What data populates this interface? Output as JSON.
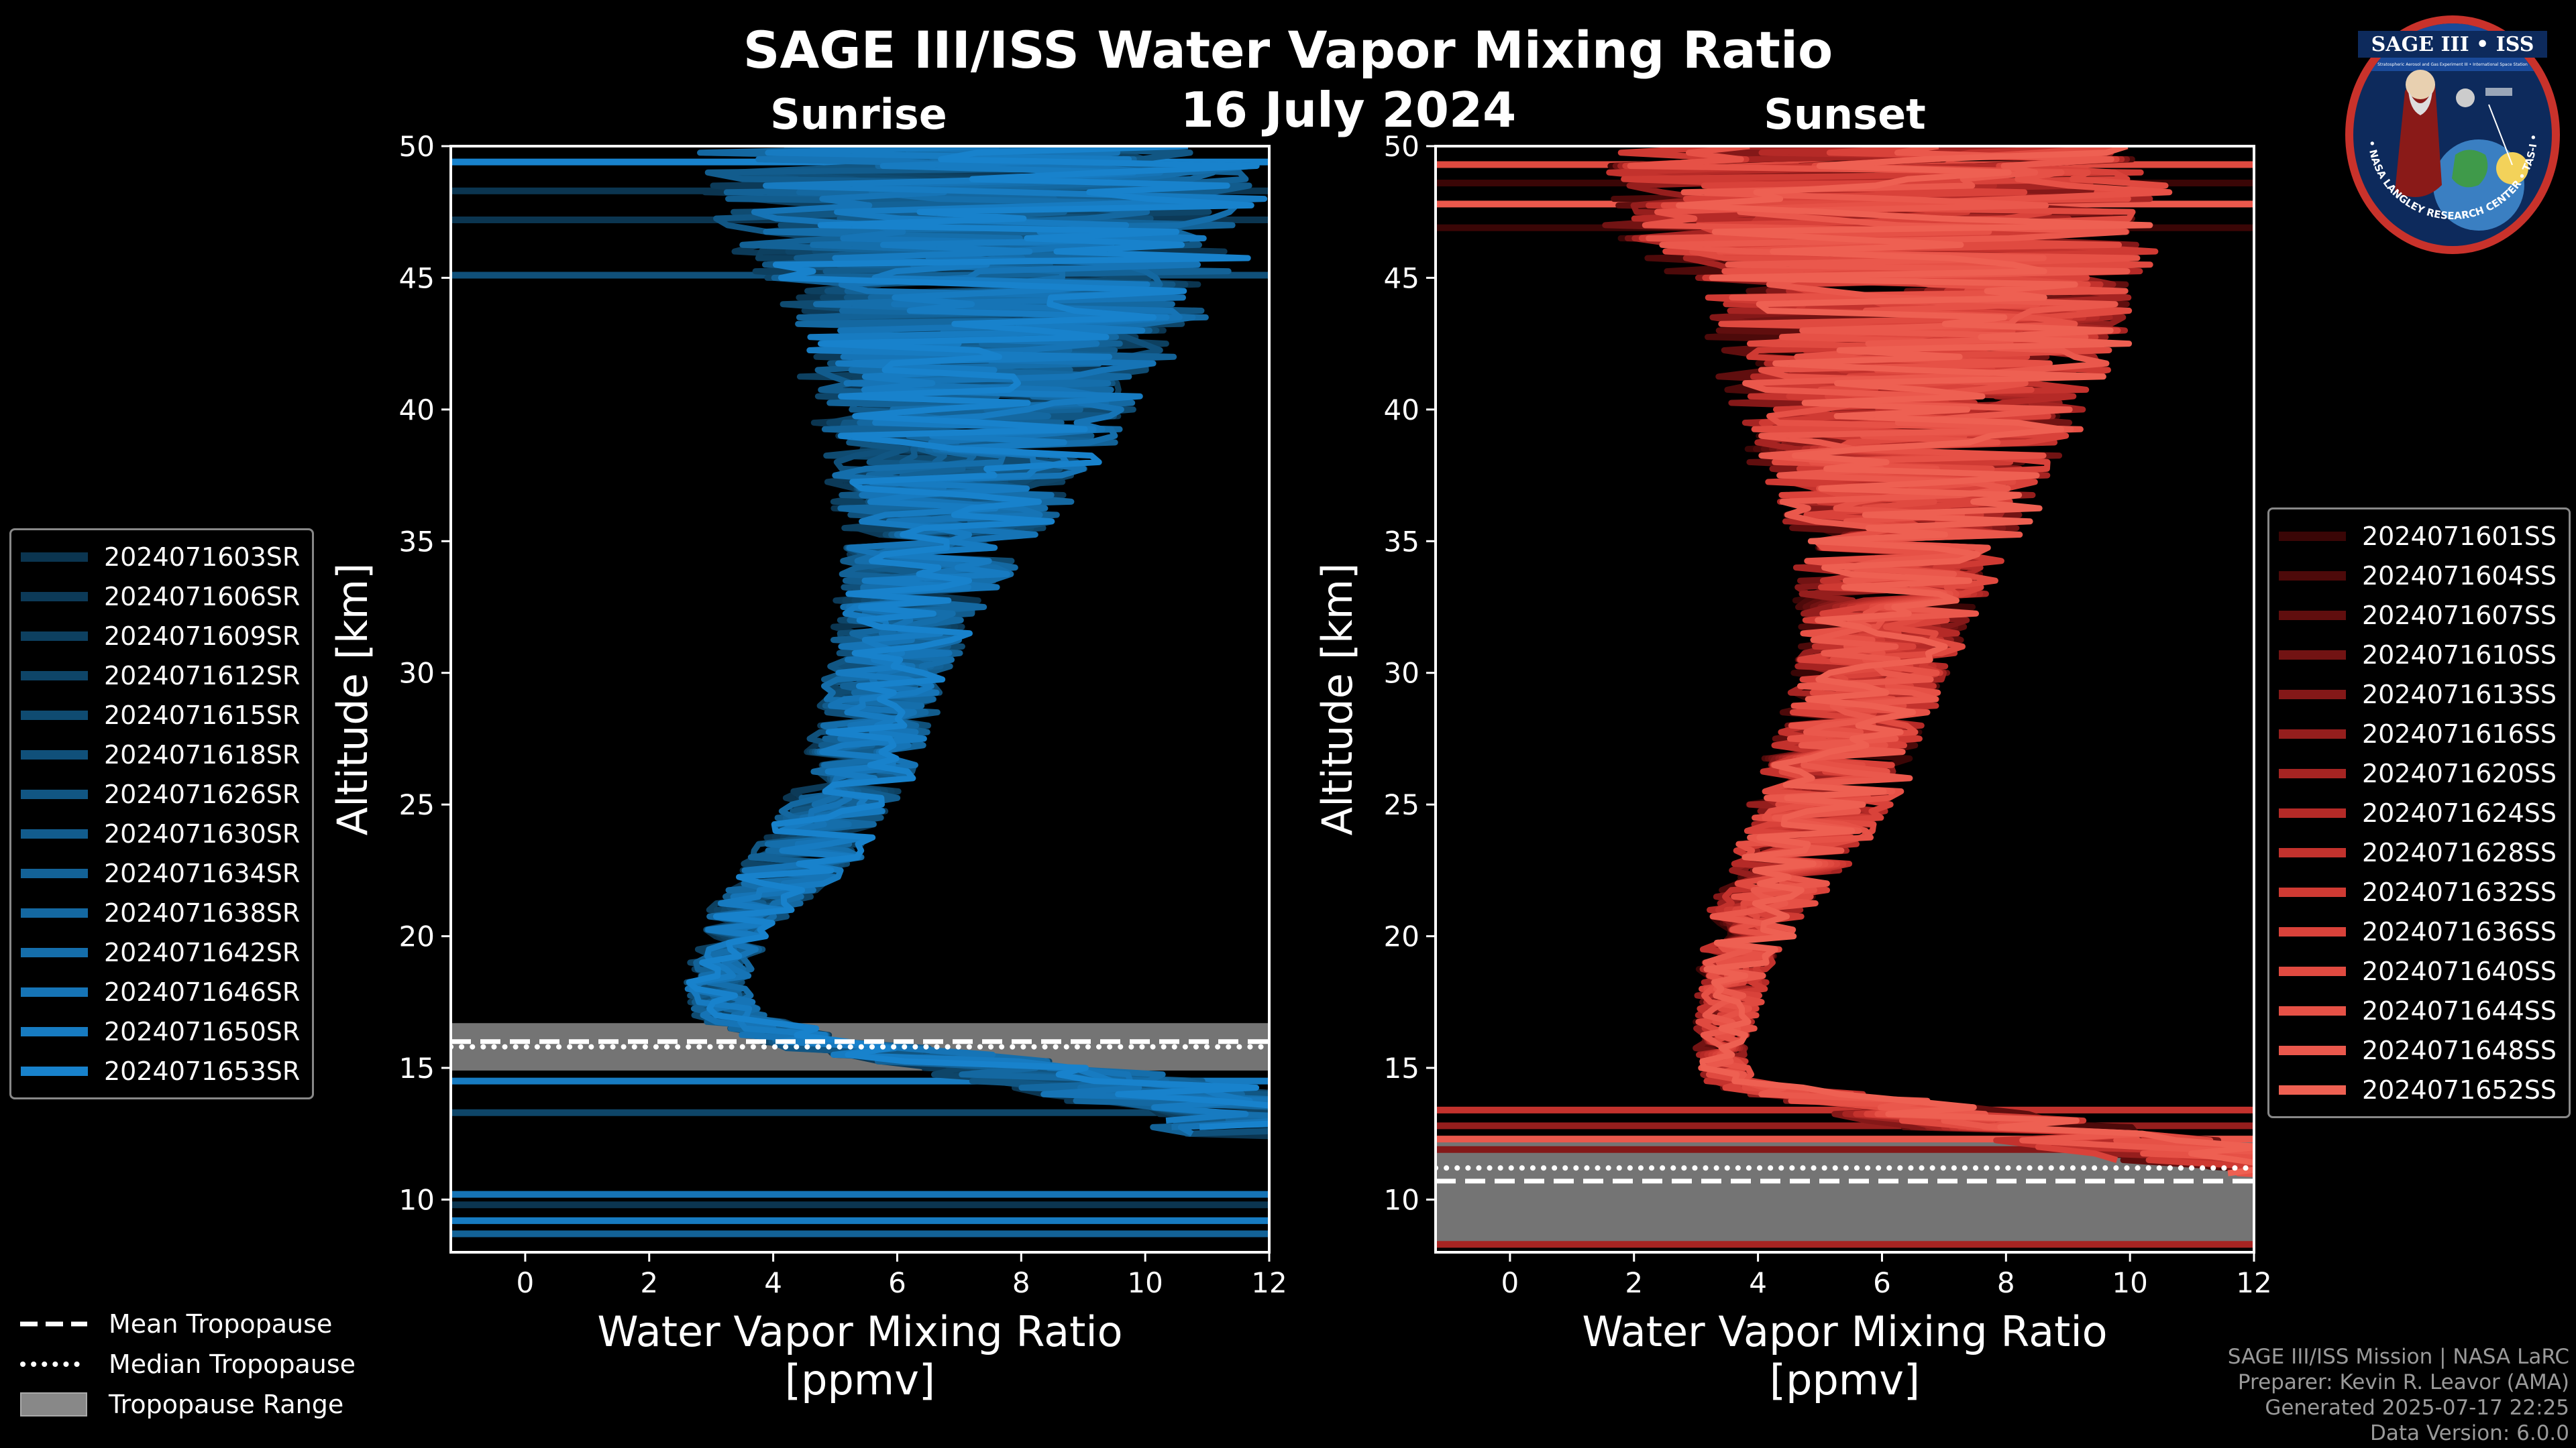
{
  "title": "SAGE III/ISS Water Vapor Mixing Ratio",
  "date": "16 July 2024",
  "colors": {
    "sunrise": "#1a8fd6",
    "sunset": "#e8584a",
    "range": "#888888",
    "background": "#000000"
  },
  "logo": {
    "top_text": "SAGE III • ISS",
    "subtitle": "Stratospheric Aerosol and Gas Experiment III • International Space Station",
    "ring_text": "BALL • NASA LANGLEY RESEARCH CENTER • TAS-I • ESA"
  },
  "tropopause_legend": {
    "mean_label": "Mean Tropopause",
    "median_label": "Median Tropopause",
    "range_label": "Tropopause Range"
  },
  "credits": {
    "line1": "SAGE III/ISS Mission | NASA LaRC",
    "line2": "Preparer: Kevin R. Leavor (AMA)",
    "line3": "Generated 2025-07-17 22:25",
    "line4": "Data Version: 6.0.0"
  },
  "chart_data": [
    {
      "type": "line",
      "title": "Sunrise",
      "xlabel": "Water Vapor Mixing Ratio [ppmv]",
      "ylabel": "Altitude [km]",
      "xlim": [
        -1.2,
        12
      ],
      "ylim": [
        8,
        50
      ],
      "xticks": [
        0,
        2,
        4,
        6,
        8,
        10,
        12
      ],
      "yticks": [
        10,
        15,
        20,
        25,
        30,
        35,
        40,
        45,
        50
      ],
      "legend_position": "left",
      "tropopause": {
        "mean": 16.0,
        "median": 15.8,
        "range": [
          14.9,
          16.7
        ]
      },
      "series_names": [
        "2024071603SR",
        "2024071606SR",
        "2024071609SR",
        "2024071612SR",
        "2024071615SR",
        "2024071618SR",
        "2024071626SR",
        "2024071630SR",
        "2024071634SR",
        "2024071638SR",
        "2024071642SR",
        "2024071646SR",
        "2024071650SR",
        "2024071653SR"
      ],
      "series_colors": [
        "#0b3550",
        "#0c3a58",
        "#0d4060",
        "#0e4568",
        "#0f4b71",
        "#10507a",
        "#115683",
        "#125c8d",
        "#136297",
        "#1468a1",
        "#156eab",
        "#1674b6",
        "#177bc1",
        "#1882cc"
      ],
      "profile": {
        "altitudes": [
          50,
          47,
          44,
          41,
          38,
          35,
          32,
          29,
          26,
          23,
          21,
          19,
          18,
          17,
          16,
          15.5,
          15,
          14.5,
          14,
          13.5,
          13
        ],
        "mean": [
          6.5,
          7.0,
          7.2,
          7.0,
          6.8,
          6.5,
          6.0,
          5.6,
          5.2,
          4.4,
          3.6,
          3.1,
          3.0,
          3.2,
          4.5,
          6.0,
          7.5,
          8.8,
          10.0,
          11.0,
          12.0
        ],
        "spread": [
          4.5,
          4.5,
          3.5,
          2.8,
          2.2,
          1.6,
          1.1,
          1.0,
          0.9,
          0.9,
          0.7,
          0.5,
          0.5,
          0.6,
          1.0,
          1.4,
          1.8,
          2.0,
          2.2,
          2.2,
          2.2
        ]
      },
      "flat_lines_km": [
        13.3,
        14.5,
        8.7,
        9.2,
        9.8,
        10.2,
        45.1,
        47.2,
        48.3,
        49.4
      ]
    },
    {
      "type": "line",
      "title": "Sunset",
      "xlabel": "Water Vapor Mixing Ratio [ppmv]",
      "ylabel": "Altitude [km]",
      "xlim": [
        -1.2,
        12
      ],
      "ylim": [
        8,
        50
      ],
      "xticks": [
        0,
        2,
        4,
        6,
        8,
        10,
        12
      ],
      "yticks": [
        10,
        15,
        20,
        25,
        30,
        35,
        40,
        45,
        50
      ],
      "legend_position": "right",
      "tropopause": {
        "mean": 10.7,
        "median": 11.2,
        "range": [
          8.2,
          12.4
        ]
      },
      "series_names": [
        "2024071601SS",
        "2024071604SS",
        "2024071607SS",
        "2024071610SS",
        "2024071613SS",
        "2024071616SS",
        "2024071620SS",
        "2024071624SS",
        "2024071628SS",
        "2024071632SS",
        "2024071636SS",
        "2024071640SS",
        "2024071644SS",
        "2024071648SS",
        "2024071652SS"
      ],
      "series_colors": [
        "#3a0606",
        "#4d0a0a",
        "#600e0e",
        "#721313",
        "#841818",
        "#951e1d",
        "#a62422",
        "#b52a27",
        "#c3322d",
        "#cf3a33",
        "#d9423a",
        "#e04a40",
        "#e65146",
        "#ea584c",
        "#ee6052"
      ],
      "profile": {
        "altitudes": [
          50,
          47,
          44,
          41,
          38,
          35,
          32,
          29,
          26,
          23,
          21,
          19,
          17,
          15.5,
          14.5,
          14,
          13.5,
          13,
          12.5,
          12,
          11.5
        ],
        "mean": [
          7.0,
          7.2,
          7.5,
          7.2,
          7.0,
          6.8,
          6.4,
          6.0,
          5.5,
          4.8,
          4.2,
          3.8,
          3.6,
          3.5,
          3.6,
          5.0,
          6.5,
          8.0,
          9.5,
          10.8,
          12.0
        ],
        "spread": [
          4.5,
          4.5,
          3.5,
          3.0,
          2.5,
          1.8,
          1.4,
          1.2,
          1.2,
          1.0,
          0.8,
          0.6,
          0.5,
          0.4,
          0.4,
          1.0,
          1.5,
          1.8,
          2.0,
          2.0,
          2.0
        ]
      },
      "flat_lines_km": [
        11.9,
        12.3,
        12.8,
        13.4,
        46.9,
        47.8,
        48.6,
        49.3,
        8.3
      ]
    }
  ]
}
